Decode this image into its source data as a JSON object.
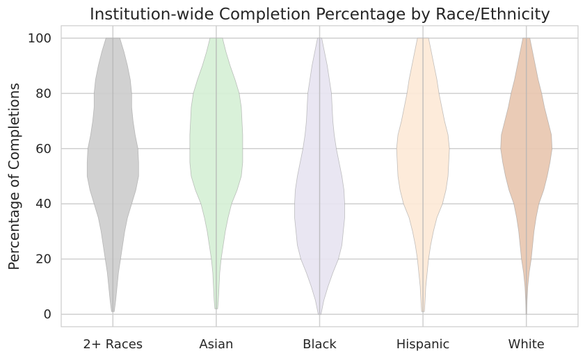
{
  "chart_data": {
    "type": "violin",
    "title": "Institution-wide Completion Percentage by Race/Ethnicity",
    "xlabel": "",
    "ylabel": "Percentage of Completions",
    "categories": [
      "2+ Races",
      "Asian",
      "Black",
      "Hispanic",
      "White"
    ],
    "yticks": [
      "0",
      "20",
      "40",
      "60",
      "80",
      "100"
    ],
    "ylim": [
      -4.5,
      104.5
    ],
    "grid": true,
    "colors": [
      "#cccccc",
      "#d5efd5",
      "#e7e3f1",
      "#fde9d6",
      "#e8c5ae"
    ],
    "series": [
      {
        "category": "2+ Races",
        "min": 1,
        "max": 100,
        "profile": [
          [
            1,
            2
          ],
          [
            5,
            4
          ],
          [
            10,
            6
          ],
          [
            15,
            8
          ],
          [
            20,
            11
          ],
          [
            25,
            14
          ],
          [
            30,
            17
          ],
          [
            35,
            21
          ],
          [
            40,
            27
          ],
          [
            45,
            33
          ],
          [
            50,
            37
          ],
          [
            55,
            37
          ],
          [
            60,
            36
          ],
          [
            65,
            32
          ],
          [
            70,
            29
          ],
          [
            75,
            27
          ],
          [
            80,
            27
          ],
          [
            85,
            25
          ],
          [
            90,
            21
          ],
          [
            95,
            16
          ],
          [
            100,
            10
          ]
        ]
      },
      {
        "category": "Asian",
        "min": 2,
        "max": 100,
        "profile": [
          [
            2,
            2
          ],
          [
            5,
            3
          ],
          [
            10,
            4
          ],
          [
            15,
            5
          ],
          [
            20,
            7
          ],
          [
            25,
            10
          ],
          [
            30,
            13
          ],
          [
            35,
            17
          ],
          [
            40,
            22
          ],
          [
            45,
            30
          ],
          [
            50,
            36
          ],
          [
            55,
            38
          ],
          [
            60,
            38
          ],
          [
            65,
            38
          ],
          [
            70,
            37
          ],
          [
            75,
            36
          ],
          [
            80,
            33
          ],
          [
            85,
            27
          ],
          [
            90,
            20
          ],
          [
            95,
            14
          ],
          [
            100,
            9
          ]
        ]
      },
      {
        "category": "Black",
        "min": 0,
        "max": 100,
        "profile": [
          [
            0,
            2
          ],
          [
            5,
            6
          ],
          [
            10,
            12
          ],
          [
            15,
            19
          ],
          [
            20,
            27
          ],
          [
            25,
            32
          ],
          [
            30,
            34
          ],
          [
            35,
            36
          ],
          [
            40,
            36
          ],
          [
            45,
            35
          ],
          [
            50,
            32
          ],
          [
            55,
            28
          ],
          [
            60,
            24
          ],
          [
            65,
            21
          ],
          [
            70,
            19
          ],
          [
            75,
            18
          ],
          [
            80,
            17
          ],
          [
            85,
            14
          ],
          [
            90,
            11
          ],
          [
            95,
            7
          ],
          [
            100,
            3
          ]
        ]
      },
      {
        "category": "Hispanic",
        "min": 1,
        "max": 100,
        "profile": [
          [
            1,
            2
          ],
          [
            5,
            3
          ],
          [
            10,
            4
          ],
          [
            15,
            6
          ],
          [
            20,
            8
          ],
          [
            25,
            11
          ],
          [
            30,
            15
          ],
          [
            35,
            20
          ],
          [
            40,
            28
          ],
          [
            45,
            33
          ],
          [
            50,
            36
          ],
          [
            55,
            37
          ],
          [
            60,
            38
          ],
          [
            65,
            36
          ],
          [
            70,
            31
          ],
          [
            75,
            27
          ],
          [
            80,
            23
          ],
          [
            85,
            20
          ],
          [
            90,
            16
          ],
          [
            95,
            12
          ],
          [
            100,
            8
          ]
        ]
      },
      {
        "category": "White",
        "min": 0,
        "max": 100,
        "profile": [
          [
            0,
            0.5
          ],
          [
            5,
            1
          ],
          [
            10,
            2
          ],
          [
            15,
            4
          ],
          [
            20,
            7
          ],
          [
            25,
            9
          ],
          [
            30,
            11
          ],
          [
            35,
            14
          ],
          [
            40,
            18
          ],
          [
            45,
            25
          ],
          [
            50,
            30
          ],
          [
            55,
            34
          ],
          [
            60,
            37
          ],
          [
            65,
            36
          ],
          [
            70,
            31
          ],
          [
            75,
            26
          ],
          [
            80,
            22
          ],
          [
            85,
            17
          ],
          [
            90,
            13
          ],
          [
            95,
            9
          ],
          [
            100,
            5
          ]
        ]
      }
    ]
  }
}
